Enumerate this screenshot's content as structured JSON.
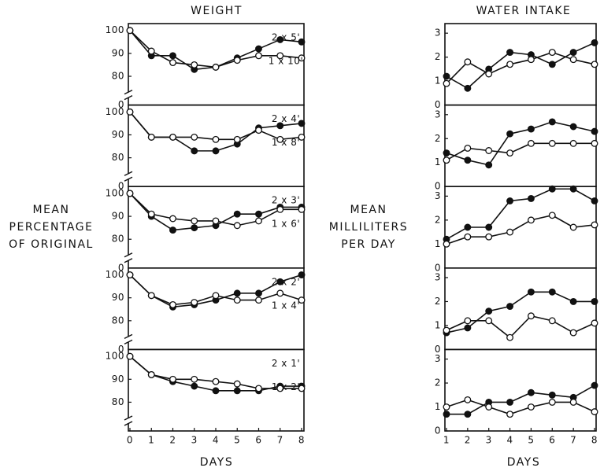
{
  "chart_data": [
    {
      "type": "line",
      "title": "WEIGHT",
      "x": [
        0,
        1,
        2,
        3,
        4,
        5,
        6,
        7,
        8
      ],
      "xlim": [
        0,
        8
      ],
      "ylim": [
        0,
        103
      ],
      "y_break": [
        3,
        75
      ],
      "yticks": [
        0,
        80,
        90,
        100
      ],
      "series": [
        {
          "name": "2 x 5'",
          "color": "#111111",
          "marker_fill": "#111111",
          "values": [
            100,
            89,
            89,
            83,
            84,
            88,
            92,
            96,
            95
          ]
        },
        {
          "name": "1 x 10'",
          "color": "#111111",
          "marker_fill": "#ffffff",
          "values": [
            100,
            91,
            86,
            85,
            84,
            87,
            89,
            89,
            88
          ]
        }
      ]
    },
    {
      "type": "line",
      "x": [
        0,
        1,
        2,
        3,
        4,
        5,
        6,
        7,
        8
      ],
      "xlim": [
        0,
        8
      ],
      "ylim": [
        0,
        103
      ],
      "y_break": [
        3,
        75
      ],
      "yticks": [
        0,
        80,
        90,
        100
      ],
      "series": [
        {
          "name": "2 x 4'",
          "color": "#111111",
          "marker_fill": "#111111",
          "values": [
            100,
            89,
            89,
            83,
            83,
            86,
            93,
            94,
            95
          ]
        },
        {
          "name": "1 x 8'",
          "color": "#111111",
          "marker_fill": "#ffffff",
          "values": [
            100,
            89,
            89,
            89,
            88,
            88,
            92,
            88,
            89
          ]
        }
      ]
    },
    {
      "type": "line",
      "y_label": [
        "MEAN",
        "PERCENTAGE",
        "OF ORIGINAL"
      ],
      "x": [
        0,
        1,
        2,
        3,
        4,
        5,
        6,
        7,
        8
      ],
      "xlim": [
        0,
        8
      ],
      "ylim": [
        0,
        103
      ],
      "y_break": [
        3,
        75
      ],
      "yticks": [
        0,
        80,
        90,
        100
      ],
      "series": [
        {
          "name": "2 x 3'",
          "color": "#111111",
          "marker_fill": "#111111",
          "values": [
            100,
            90,
            84,
            85,
            86,
            91,
            91,
            94,
            94
          ]
        },
        {
          "name": "1 x 6'",
          "color": "#111111",
          "marker_fill": "#ffffff",
          "values": [
            100,
            91,
            89,
            88,
            88,
            86,
            88,
            93,
            93
          ]
        }
      ]
    },
    {
      "type": "line",
      "x": [
        0,
        1,
        2,
        3,
        4,
        5,
        6,
        7,
        8
      ],
      "xlim": [
        0,
        8
      ],
      "ylim": [
        0,
        103
      ],
      "y_break": [
        3,
        75
      ],
      "yticks": [
        0,
        80,
        90,
        100
      ],
      "series": [
        {
          "name": "2 x 2'",
          "color": "#111111",
          "marker_fill": "#111111",
          "values": [
            100,
            91,
            86,
            87,
            89,
            92,
            92,
            97,
            100
          ]
        },
        {
          "name": "1 x 4'",
          "color": "#111111",
          "marker_fill": "#ffffff",
          "values": [
            100,
            91,
            87,
            88,
            91,
            89,
            89,
            92,
            89
          ]
        }
      ]
    },
    {
      "type": "line",
      "x_label": "DAYS",
      "x": [
        0,
        1,
        2,
        3,
        4,
        5,
        6,
        7,
        8
      ],
      "xlim": [
        0,
        8
      ],
      "xticks": [
        0,
        1,
        2,
        3,
        4,
        5,
        6,
        7,
        8
      ],
      "ylim": [
        0,
        103
      ],
      "y_break": [
        3,
        75
      ],
      "yticks": [
        80,
        90,
        100
      ],
      "series": [
        {
          "name": "2 x 1'",
          "color": "#111111",
          "marker_fill": "#111111",
          "values": [
            100,
            92,
            89,
            87,
            85,
            85,
            85,
            87,
            87
          ]
        },
        {
          "name": "1 x 2'",
          "color": "#111111",
          "marker_fill": "#ffffff",
          "values": [
            100,
            92,
            90,
            90,
            89,
            88,
            86,
            86,
            86
          ]
        }
      ]
    },
    {
      "type": "line",
      "title": "WATER INTAKE",
      "x": [
        1,
        2,
        3,
        4,
        5,
        6,
        7,
        8
      ],
      "xlim": [
        1,
        8
      ],
      "ylim": [
        0,
        3.4
      ],
      "yticks": [
        0,
        1,
        2,
        3
      ],
      "series": [
        {
          "color": "#111111",
          "marker_fill": "#111111",
          "values": [
            1.2,
            0.7,
            1.5,
            2.2,
            2.1,
            1.7,
            2.2,
            2.6
          ]
        },
        {
          "color": "#111111",
          "marker_fill": "#ffffff",
          "values": [
            0.9,
            1.8,
            1.3,
            1.7,
            1.9,
            2.2,
            1.9,
            1.7
          ]
        }
      ]
    },
    {
      "type": "line",
      "x": [
        1,
        2,
        3,
        4,
        5,
        6,
        7,
        8
      ],
      "xlim": [
        1,
        8
      ],
      "ylim": [
        0,
        3.4
      ],
      "yticks": [
        0,
        1,
        2,
        3
      ],
      "series": [
        {
          "color": "#111111",
          "marker_fill": "#111111",
          "values": [
            1.4,
            1.1,
            0.9,
            2.2,
            2.4,
            2.7,
            2.5,
            2.3
          ]
        },
        {
          "color": "#111111",
          "marker_fill": "#ffffff",
          "values": [
            1.1,
            1.6,
            1.5,
            1.4,
            1.8,
            1.8,
            1.8,
            1.8
          ]
        }
      ]
    },
    {
      "type": "line",
      "y_label": [
        "MEAN",
        "MILLILITERS",
        "PER DAY"
      ],
      "x": [
        1,
        2,
        3,
        4,
        5,
        6,
        7,
        8
      ],
      "xlim": [
        1,
        8
      ],
      "ylim": [
        0,
        3.4
      ],
      "yticks": [
        0,
        1,
        2,
        3
      ],
      "series": [
        {
          "color": "#111111",
          "marker_fill": "#111111",
          "values": [
            1.2,
            1.7,
            1.7,
            2.8,
            2.9,
            3.3,
            3.3,
            2.8
          ]
        },
        {
          "color": "#111111",
          "marker_fill": "#ffffff",
          "values": [
            1.0,
            1.3,
            1.3,
            1.5,
            2.0,
            2.2,
            1.7,
            1.8
          ]
        }
      ]
    },
    {
      "type": "line",
      "x": [
        1,
        2,
        3,
        4,
        5,
        6,
        7,
        8
      ],
      "xlim": [
        1,
        8
      ],
      "ylim": [
        0,
        3.4
      ],
      "yticks": [
        0,
        1,
        2,
        3
      ],
      "series": [
        {
          "color": "#111111",
          "marker_fill": "#111111",
          "values": [
            0.7,
            0.9,
            1.6,
            1.8,
            2.4,
            2.4,
            2.0,
            2.0
          ]
        },
        {
          "color": "#111111",
          "marker_fill": "#ffffff",
          "values": [
            0.8,
            1.2,
            1.2,
            0.5,
            1.4,
            1.2,
            0.7,
            1.1
          ]
        }
      ]
    },
    {
      "type": "line",
      "x_label": "DAYS",
      "x": [
        1,
        2,
        3,
        4,
        5,
        6,
        7,
        8
      ],
      "xlim": [
        1,
        8
      ],
      "xticks": [
        1,
        2,
        3,
        4,
        5,
        6,
        7,
        8
      ],
      "ylim": [
        0,
        3.4
      ],
      "yticks": [
        0,
        1,
        2,
        3
      ],
      "series": [
        {
          "color": "#111111",
          "marker_fill": "#111111",
          "values": [
            0.7,
            0.7,
            1.2,
            1.2,
            1.6,
            1.5,
            1.4,
            1.9
          ]
        },
        {
          "color": "#111111",
          "marker_fill": "#ffffff",
          "values": [
            1.0,
            1.3,
            1.0,
            0.7,
            1.0,
            1.2,
            1.2,
            0.8
          ]
        }
      ]
    }
  ]
}
